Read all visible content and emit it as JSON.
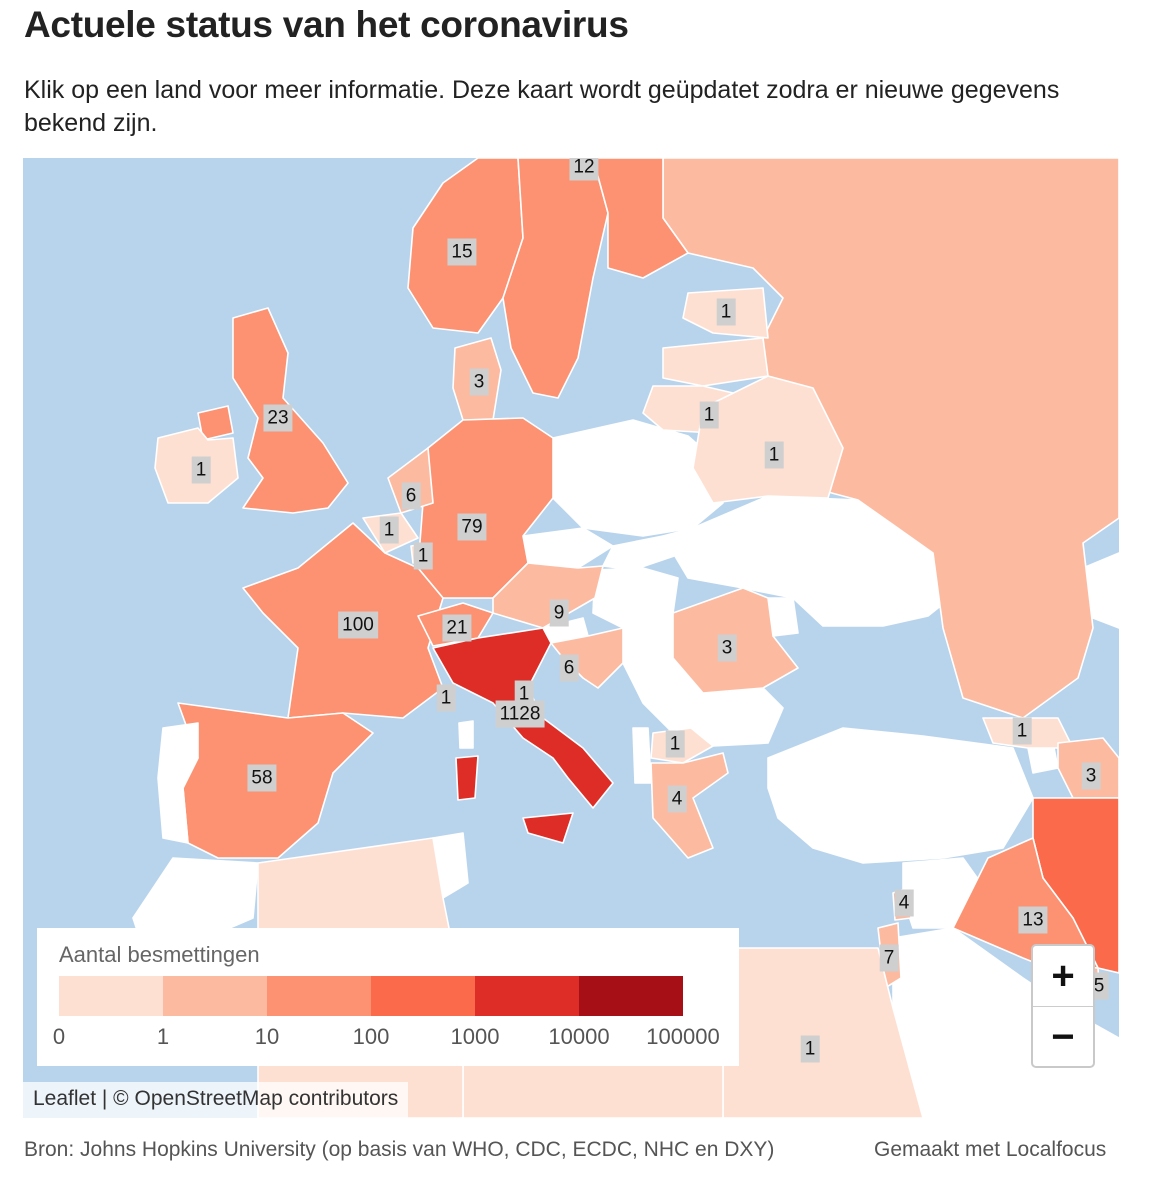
{
  "header": {
    "title": "Actuele status van het coronavirus",
    "subtitle": "Klik op een land voor meer informatie. Deze kaart wordt geüpdatet zodra er nieuwe gegevens bekend zijn."
  },
  "map": {
    "water_color": "#b8d4ec",
    "no_data_color": "#ffffff",
    "countries": [
      {
        "name": "Noorwegen",
        "value": "15",
        "color": "#fc9272"
      },
      {
        "name": "Zweden",
        "value": "12",
        "color": "#fc9272"
      },
      {
        "name": "Finland",
        "value": "12",
        "color": "#fc9272"
      },
      {
        "name": "Estland",
        "value": "1",
        "color": "#fee0d2"
      },
      {
        "name": "Denemarken",
        "value": "3",
        "color": "#fcbba1"
      },
      {
        "name": "Litouwen",
        "value": "1",
        "color": "#fee0d2"
      },
      {
        "name": "Wit-Rusland",
        "value": "1",
        "color": "#fee0d2"
      },
      {
        "name": "Rusland",
        "value": "",
        "color": "#fcbba1"
      },
      {
        "name": "Verenigd Koninkrijk",
        "value": "23",
        "color": "#fc9272"
      },
      {
        "name": "Ierland",
        "value": "1",
        "color": "#fee0d2"
      },
      {
        "name": "Nederland",
        "value": "6",
        "color": "#fcbba1"
      },
      {
        "name": "België",
        "value": "1",
        "color": "#fee0d2"
      },
      {
        "name": "Luxemburg",
        "value": "1",
        "color": "#fee0d2"
      },
      {
        "name": "Duitsland",
        "value": "79",
        "color": "#fc9272"
      },
      {
        "name": "Frankrijk",
        "value": "100",
        "color": "#fc9272"
      },
      {
        "name": "Zwitserland",
        "value": "21",
        "color": "#fc9272"
      },
      {
        "name": "Oostenrijk",
        "value": "9",
        "color": "#fcbba1"
      },
      {
        "name": "Kroatië",
        "value": "6",
        "color": "#fcbba1"
      },
      {
        "name": "Roemenië",
        "value": "3",
        "color": "#fcbba1"
      },
      {
        "name": "Monaco",
        "value": "1",
        "color": "#fee0d2"
      },
      {
        "name": "San Marino",
        "value": "1",
        "color": "#fee0d2"
      },
      {
        "name": "Italië",
        "value": "1128",
        "color": "#de2d26"
      },
      {
        "name": "Spanje",
        "value": "58",
        "color": "#fc9272"
      },
      {
        "name": "Noord-Macedonië",
        "value": "1",
        "color": "#fee0d2"
      },
      {
        "name": "Griekenland",
        "value": "4",
        "color": "#fcbba1"
      },
      {
        "name": "Georgië",
        "value": "1",
        "color": "#fee0d2"
      },
      {
        "name": "Azerbeidzjan",
        "value": "3",
        "color": "#fcbba1"
      },
      {
        "name": "Libanon",
        "value": "4",
        "color": "#fcbba1"
      },
      {
        "name": "Israël",
        "value": "7",
        "color": "#fcbba1"
      },
      {
        "name": "Irak",
        "value": "13",
        "color": "#fc9272"
      },
      {
        "name": "Iran",
        "value": "",
        "color": "#fb6a4a"
      },
      {
        "name": "Koeweit",
        "value": "5",
        "color": "#fcbba1"
      },
      {
        "name": "Egypte",
        "value": "1",
        "color": "#fee0d2"
      },
      {
        "name": "Algerije",
        "value": "",
        "color": "#fee0d2"
      },
      {
        "name": "Libië",
        "value": "",
        "color": "#fee0d2"
      }
    ]
  },
  "legend": {
    "title": "Aantal besmettingen",
    "bins": [
      "#fee0d2",
      "#fcbba1",
      "#fc9272",
      "#fb6a4a",
      "#de2d26",
      "#a50f15"
    ],
    "ticks": [
      "0",
      "1",
      "10",
      "100",
      "1000",
      "10000",
      "100000"
    ]
  },
  "controls": {
    "zoom_in": "+",
    "zoom_out": "−"
  },
  "attribution": {
    "leaflet": "Leaflet",
    "separator": " | © ",
    "osm": "OpenStreetMap contributors"
  },
  "footer": {
    "source": "Bron: Johns Hopkins University (op basis van WHO, CDC, ECDC, NHC en DXY)",
    "credit": "Gemaakt met Localfocus"
  }
}
